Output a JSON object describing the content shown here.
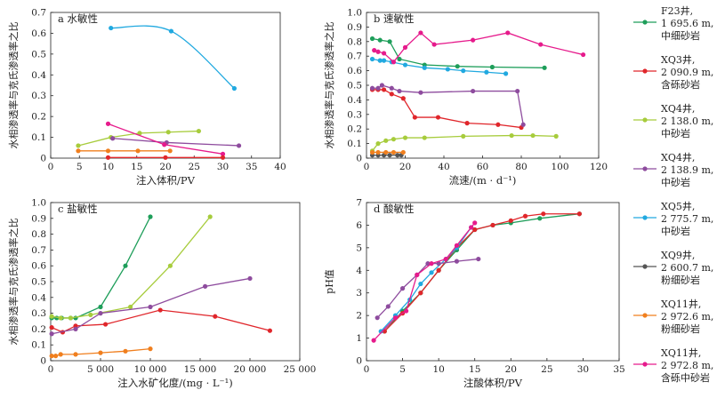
{
  "chart_data": [
    {
      "type": "scatter",
      "title": "a 水敏性",
      "xlabel": "注入体积/PV",
      "ylabel": "水相渗透率与克氏渗透率之比",
      "xlim": [
        0,
        40
      ],
      "ylim": [
        0,
        0.7
      ],
      "xticks": [
        "0",
        "5",
        "10",
        "15",
        "20",
        "25",
        "30",
        "35",
        "40"
      ],
      "yticks": [
        "0",
        "0.1",
        "0.2",
        "0.3",
        "0.4",
        "0.5",
        "0.6",
        "0.7"
      ],
      "series": [
        {
          "name": "XQ5井, 2 775.7 m, 中砂岩",
          "x": [
            10.5,
            21,
            32
          ],
          "y": [
            0.625,
            0.61,
            0.335
          ],
          "smooth": true
        },
        {
          "name": "XQ4井, 2 138.0 m, 中砂岩",
          "x": [
            4.8,
            10.5,
            15.5,
            20.5,
            25.8
          ],
          "y": [
            0.06,
            0.1,
            0.12,
            0.125,
            0.13
          ]
        },
        {
          "name": "XQ4井, 2 138.9 m, 中砂岩",
          "x": [
            10.8,
            20.2,
            32.8
          ],
          "y": [
            0.095,
            0.075,
            0.06
          ]
        },
        {
          "name": "XQ11井, 2 972.8 m, 含砾中砂岩",
          "x": [
            10,
            19.8,
            30
          ],
          "y": [
            0.165,
            0.065,
            0.02
          ]
        },
        {
          "name": "XQ11井, 2 972.6 m, 粉细砂岩",
          "x": [
            4.8,
            10,
            15.2,
            20.8
          ],
          "y": [
            0.035,
            0.035,
            0.035,
            0.035
          ]
        },
        {
          "name": "XQ3井, 2 090.9 m, 含砾砂岩",
          "x": [
            10,
            20,
            30
          ],
          "y": [
            0.003,
            0.003,
            0.003
          ]
        }
      ]
    },
    {
      "type": "scatter",
      "title": "b 速敏性",
      "xlabel": "流速/(m · d⁻¹)",
      "ylabel": "水相渗透率与克氏渗透率之比",
      "xlim": [
        0,
        120
      ],
      "ylim": [
        0,
        1.0
      ],
      "xticks": [
        "0",
        "20",
        "40",
        "60",
        "80",
        "100",
        "120"
      ],
      "yticks": [
        "0",
        "0.1",
        "0.2",
        "0.3",
        "0.4",
        "0.5",
        "0.6",
        "0.7",
        "0.8",
        "0.9",
        "1.0"
      ],
      "series": [
        {
          "name": "F23井, 1 695.6 m, 中细砂岩",
          "x": [
            3,
            7,
            12,
            17,
            30,
            47,
            65,
            92
          ],
          "y": [
            0.82,
            0.81,
            0.8,
            0.68,
            0.64,
            0.63,
            0.625,
            0.62
          ]
        },
        {
          "name": "XQ3井, 2 090.9 m, 含砾砂岩",
          "x": [
            3,
            6,
            9,
            13,
            19,
            25,
            37,
            52,
            68,
            80
          ],
          "y": [
            0.47,
            0.47,
            0.47,
            0.44,
            0.41,
            0.28,
            0.28,
            0.24,
            0.23,
            0.21
          ]
        },
        {
          "name": "XQ4井, 2 138.0 m, 中砂岩",
          "x": [
            3,
            6,
            10,
            14,
            20,
            30,
            50,
            75,
            86,
            98
          ],
          "y": [
            0.05,
            0.1,
            0.12,
            0.13,
            0.14,
            0.14,
            0.15,
            0.155,
            0.155,
            0.15
          ]
        },
        {
          "name": "XQ4井, 2 138.9 m, 中砂岩",
          "x": [
            3,
            6,
            8,
            13,
            17,
            28,
            55,
            78,
            81
          ],
          "y": [
            0.48,
            0.48,
            0.5,
            0.48,
            0.46,
            0.45,
            0.46,
            0.46,
            0.23
          ]
        },
        {
          "name": "XQ5井, 2 775.7 m, 中砂岩",
          "x": [
            3,
            7,
            9,
            13,
            20,
            30,
            42,
            50,
            62,
            72
          ],
          "y": [
            0.68,
            0.67,
            0.67,
            0.66,
            0.64,
            0.62,
            0.61,
            0.6,
            0.59,
            0.58
          ]
        },
        {
          "name": "XQ9井, 2 600.7 m, 粉细砂岩",
          "x": [
            3,
            6,
            9,
            12,
            16,
            18
          ],
          "y": [
            0.02,
            0.02,
            0.02,
            0.02,
            0.02,
            0.02
          ]
        },
        {
          "name": "XQ11井, 2 972.6 m, 粉细砂岩",
          "x": [
            3,
            6,
            10,
            14,
            19
          ],
          "y": [
            0.04,
            0.04,
            0.04,
            0.04,
            0.04
          ]
        },
        {
          "name": "XQ11井, 2 972.8 m, 含砾中砂岩",
          "x": [
            4,
            6,
            9,
            14,
            20,
            28,
            35,
            55,
            73,
            90,
            112
          ],
          "y": [
            0.74,
            0.73,
            0.72,
            0.66,
            0.76,
            0.86,
            0.78,
            0.81,
            0.86,
            0.78,
            0.71
          ]
        }
      ]
    },
    {
      "type": "scatter",
      "title": "c 盐敏性",
      "xlabel": "注入水矿化度/(mg · L⁻¹)",
      "ylabel": "水相渗透率与克氏渗透率之比",
      "xlim": [
        0,
        25000
      ],
      "ylim": [
        0,
        1.0
      ],
      "xticks": [
        "0",
        "5 000",
        "10 000",
        "15 000",
        "20 000",
        "25 000"
      ],
      "yticks": [
        "0",
        "0.1",
        "0.2",
        "0.3",
        "0.4",
        "0.5",
        "0.6",
        "0.7",
        "0.8",
        "0.9",
        "1.0"
      ],
      "series": [
        {
          "name": "F23井, 1 695.6 m, 中细砂岩",
          "x": [
            100,
            600,
            1100,
            2000,
            2500,
            5000,
            7500,
            10000
          ],
          "y": [
            0.27,
            0.27,
            0.27,
            0.27,
            0.27,
            0.34,
            0.6,
            0.91
          ]
        },
        {
          "name": "XQ3井, 2 090.9 m, 含砾砂岩",
          "x": [
            100,
            1200,
            2500,
            5500,
            11000,
            16500,
            22000
          ],
          "y": [
            0.21,
            0.18,
            0.22,
            0.23,
            0.32,
            0.28,
            0.19
          ]
        },
        {
          "name": "XQ4井, 2 138.0 m, 中砂岩",
          "x": [
            100,
            1000,
            2000,
            4000,
            8000,
            12000,
            16000
          ],
          "y": [
            0.28,
            0.27,
            0.27,
            0.29,
            0.34,
            0.6,
            0.91
          ]
        },
        {
          "name": "XQ4井, 2 138.9 m, 中砂岩",
          "x": [
            100,
            2500,
            5000,
            10000,
            15500,
            20000
          ],
          "y": [
            0.17,
            0.2,
            0.3,
            0.34,
            0.47,
            0.52
          ]
        },
        {
          "name": "XQ11井, 2 972.6 m, 粉细砂岩",
          "x": [
            100,
            500,
            1000,
            2500,
            5000,
            7500,
            10000
          ],
          "y": [
            0.03,
            0.03,
            0.04,
            0.04,
            0.05,
            0.06,
            0.075
          ]
        }
      ]
    },
    {
      "type": "scatter",
      "title": "d 酸敏性",
      "xlabel": "注酸体积/PV",
      "ylabel": "pH值",
      "xlim": [
        0,
        35
      ],
      "ylim": [
        0,
        7
      ],
      "xticks": [
        "0",
        "5",
        "10",
        "15",
        "20",
        "25",
        "30",
        "35"
      ],
      "yticks": [
        "0",
        "1",
        "2",
        "3",
        "4",
        "5",
        "6",
        "7"
      ],
      "series": [
        {
          "name": "F23井, 1 695.6 m, 中细砂岩",
          "x": [
            2.5,
            5,
            7.5,
            10,
            12.5,
            15,
            17.5,
            20,
            24,
            29.5
          ],
          "y": [
            1.3,
            2.2,
            3.0,
            4.0,
            4.9,
            5.8,
            6.0,
            6.1,
            6.3,
            6.5
          ]
        },
        {
          "name": "XQ3井, 2 090.9 m, 含砾砂岩",
          "x": [
            2.5,
            5,
            7.5,
            10,
            12.5,
            15,
            17.5,
            20,
            22,
            24.5,
            29.5
          ],
          "y": [
            1.3,
            2.1,
            3.0,
            4.0,
            5.0,
            5.8,
            6.0,
            6.2,
            6.4,
            6.5,
            6.5
          ]
        },
        {
          "name": "XQ5井, 2 775.7 m, 中砂岩",
          "x": [
            2,
            4,
            6,
            7.5,
            9,
            11,
            12.5,
            14.5
          ],
          "y": [
            1.3,
            2.0,
            2.7,
            3.4,
            3.9,
            4.5,
            5.0,
            5.9
          ]
        },
        {
          "name": "XQ4井, 2 138.9 m, 中砂岩",
          "x": [
            1.5,
            3,
            5,
            7,
            8.5,
            10,
            12.5,
            15.5
          ],
          "y": [
            1.9,
            2.4,
            3.2,
            3.8,
            4.3,
            4.3,
            4.4,
            4.5
          ]
        },
        {
          "name": "XQ11井, 2 972.8 m, 含砾中砂岩",
          "x": [
            1,
            4,
            5.5,
            7,
            9,
            11,
            12.5,
            14.5,
            15
          ],
          "y": [
            0.9,
            1.9,
            2.2,
            3.8,
            4.3,
            4.5,
            5.1,
            5.9,
            6.1
          ]
        }
      ]
    }
  ],
  "legend": [
    {
      "well": "F23井,",
      "depth": "1 695.6 m,",
      "lith": "中细砂岩",
      "color": "#1e9e5a"
    },
    {
      "well": "XQ3井,",
      "depth": "2 090.9 m,",
      "lith": "含砾砂岩",
      "color": "#e0262b"
    },
    {
      "well": "XQ4井,",
      "depth": "2 138.0 m,",
      "lith": "中砂岩",
      "color": "#a7cc3c"
    },
    {
      "well": "XQ4井,",
      "depth": "2 138.9 m,",
      "lith": "中砂岩",
      "color": "#8e4c9e"
    },
    {
      "well": "XQ5井,",
      "depth": "2 775.7 m,",
      "lith": "中砂岩",
      "color": "#21a9e0"
    },
    {
      "well": "XQ9井,",
      "depth": "2 600.7 m,",
      "lith": "粉细砂岩",
      "color": "#555555"
    },
    {
      "well": "XQ11井,",
      "depth": "2 972.6 m,",
      "lith": "粉细砂岩",
      "color": "#f07f1e"
    },
    {
      "well": "XQ11井,",
      "depth": "2 972.8 m,",
      "lith": "含砾中砂岩",
      "color": "#e61b8c"
    }
  ]
}
